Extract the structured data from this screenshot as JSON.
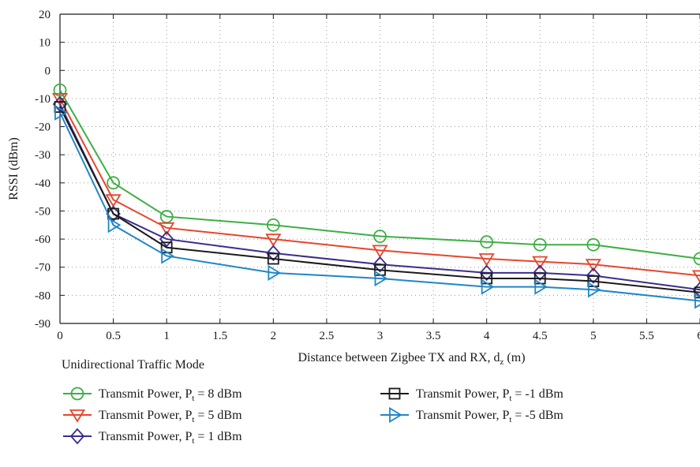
{
  "chart_data": {
    "type": "line",
    "xlabel": "Distance between Zigbee TX and RX, d",
    "xlabel_sub": "z",
    "xlabel_unit": " (m)",
    "ylabel": "RSSI (dBm)",
    "xlim": [
      0,
      6
    ],
    "ylim": [
      -90,
      20
    ],
    "xticks": [
      0,
      0.5,
      1,
      1.5,
      2,
      2.5,
      3,
      3.5,
      4,
      4.5,
      5,
      5.5,
      6
    ],
    "xtick_labels": [
      "0",
      "0.5",
      "1",
      "1.5",
      "2",
      "2.5",
      "3",
      "3.5",
      "4",
      "4.5",
      "5",
      "5.5",
      "6"
    ],
    "yticks": [
      20,
      10,
      0,
      -10,
      -20,
      -30,
      -40,
      -50,
      -60,
      -70,
      -80,
      -90
    ],
    "ytick_labels": [
      "20",
      "10",
      "0",
      "-10",
      "-20",
      "-30",
      "-40",
      "-50",
      "-60",
      "-70",
      "-80",
      "-90"
    ],
    "grid": true,
    "legend_title": "Unidirectional Traffic Mode",
    "legend_placement": "bottom",
    "x": [
      0,
      0.5,
      1,
      2,
      3,
      4,
      4.5,
      5,
      6
    ],
    "series": [
      {
        "name": "Transmit Power, P",
        "name_sub": "t",
        "name_suffix": " = 8 dBm",
        "marker": "circle",
        "color": "#3cb043",
        "values": [
          -7,
          -40,
          -52,
          -55,
          -59,
          -61,
          -62,
          -62,
          -67
        ]
      },
      {
        "name": "Transmit Power, P",
        "name_sub": "t",
        "name_suffix": " = 5 dBm",
        "marker": "triangle-down",
        "color": "#e8452c",
        "values": [
          -10,
          -46,
          -56,
          -60,
          -64,
          -67,
          -68,
          -69,
          -73
        ]
      },
      {
        "name": "Transmit Power, P",
        "name_sub": "t",
        "name_suffix": " = 1 dBm",
        "marker": "diamond",
        "color": "#3a2e8c",
        "values": [
          -12,
          -51,
          -60,
          -65,
          -69,
          -72,
          -72,
          -73,
          -78
        ]
      },
      {
        "name": "Transmit Power, P",
        "name_sub": "t",
        "name_suffix": " = -1 dBm",
        "marker": "square",
        "color": "#1a1a1a",
        "values": [
          -13,
          -51,
          -63,
          -67,
          -71,
          -74,
          -74,
          -75,
          -79
        ]
      },
      {
        "name": "Transmit Power, P",
        "name_sub": "t",
        "name_suffix": " = -5 dBm",
        "marker": "triangle-right",
        "color": "#1f86c8",
        "values": [
          -15,
          -55,
          -66,
          -72,
          -74,
          -77,
          -77,
          -78,
          -82
        ]
      }
    ]
  }
}
